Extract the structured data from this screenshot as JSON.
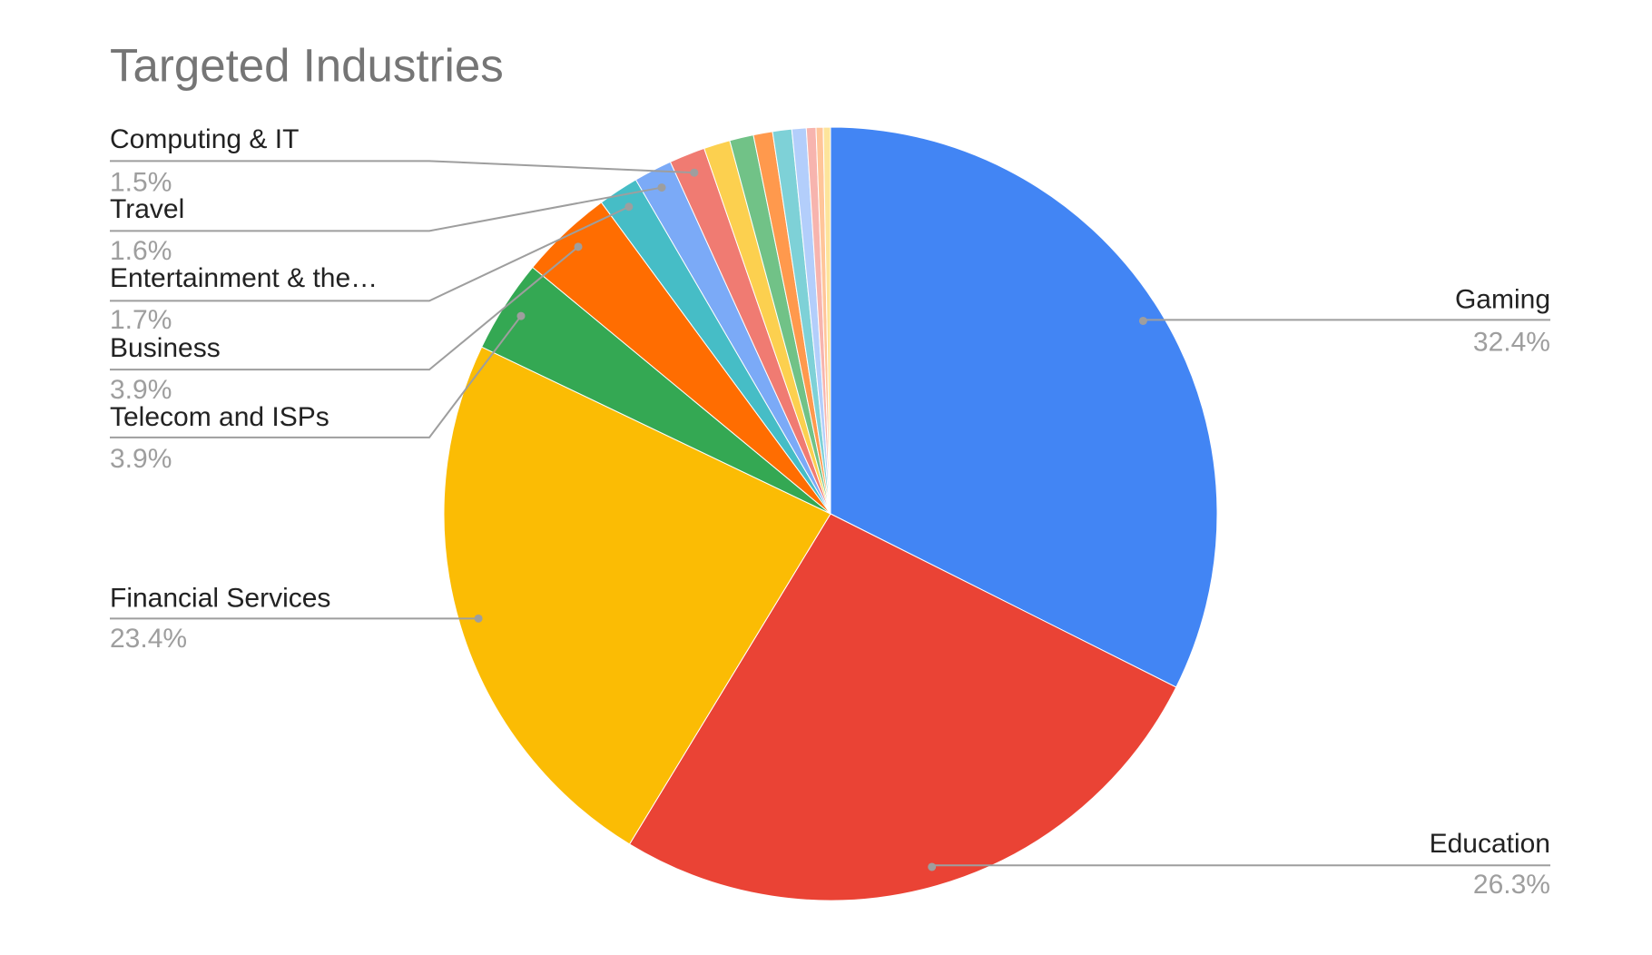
{
  "chart_data": {
    "type": "pie",
    "title": "Targeted Industries",
    "categories": [
      "Gaming",
      "Education",
      "Financial Services",
      "Telecom and ISPs",
      "Business",
      "Entertainment & the…",
      "Travel",
      "Computing & IT",
      null,
      null,
      null,
      null,
      null,
      null,
      null,
      null
    ],
    "values": [
      32.4,
      26.3,
      23.4,
      3.9,
      3.9,
      1.7,
      1.6,
      1.5,
      1.1,
      1.0,
      0.8,
      0.8,
      0.6,
      0.4,
      0.3,
      0.3
    ],
    "value_labels": [
      "32.4%",
      "26.3%",
      "23.4%",
      "3.9%",
      "3.9%",
      "1.7%",
      "1.6%",
      "1.5%",
      null,
      null,
      null,
      null,
      null,
      null,
      null,
      null
    ],
    "colors": [
      "#4285f4",
      "#ea4335",
      "#fbbc04",
      "#34a853",
      "#ff6d01",
      "#46bdc6",
      "#7baaf7",
      "#f07b72",
      "#fcd04f",
      "#71c287",
      "#ff994d",
      "#7ed1d7",
      "#b3cefb",
      "#f7b4ae",
      "#ffc599",
      "#fde49b"
    ]
  }
}
